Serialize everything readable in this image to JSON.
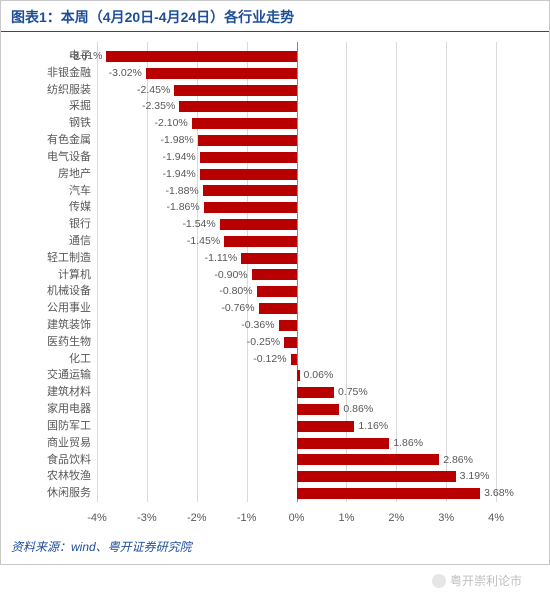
{
  "title": "图表1：本周（4月20日-4月24日）各行业走势",
  "source": "资料来源：wind、粤开证券研究院",
  "watermark": "粤开崇利论市",
  "chart": {
    "type": "bar",
    "orientation": "horizontal",
    "xmin": -4,
    "xmax": 4.5,
    "xtick_step": 1,
    "xticks": [
      -4,
      -3,
      -2,
      -1,
      0,
      1,
      2,
      3,
      4
    ],
    "xtick_suffix": "%",
    "bar_color": "#b90000",
    "grid_color": "#d9d9d9",
    "axis_color": "#888888",
    "label_color": "#585858",
    "title_color": "#1f4e99",
    "background_color": "#ffffff",
    "title_fontsize": 14,
    "label_fontsize": 11,
    "value_label_fontsize": 10.5,
    "categories": [
      "电子",
      "非银金融",
      "纺织服装",
      "采掘",
      "钢铁",
      "有色金属",
      "电气设备",
      "房地产",
      "汽车",
      "传媒",
      "银行",
      "通信",
      "轻工制造",
      "计算机",
      "机械设备",
      "公用事业",
      "建筑装饰",
      "医药生物",
      "化工",
      "交通运输",
      "建筑材料",
      "家用电器",
      "国防军工",
      "商业贸易",
      "食品饮料",
      "农林牧渔",
      "休闲服务"
    ],
    "values": [
      -3.81,
      -3.02,
      -2.45,
      -2.35,
      -2.1,
      -1.98,
      -1.94,
      -1.94,
      -1.88,
      -1.86,
      -1.54,
      -1.45,
      -1.11,
      -0.9,
      -0.8,
      -0.76,
      -0.36,
      -0.25,
      -0.12,
      0.06,
      0.75,
      0.86,
      1.16,
      1.86,
      2.86,
      3.19,
      3.68
    ],
    "value_label_suffix": "%"
  }
}
